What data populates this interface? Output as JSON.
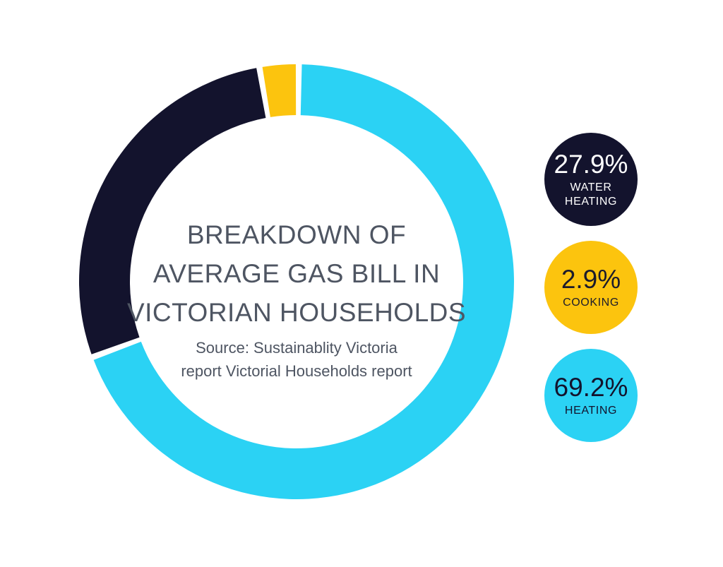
{
  "page": {
    "background": "#FFFFFF"
  },
  "title": {
    "lines": [
      "BREAKDOWN OF",
      "AVERAGE GAS BILL IN",
      "VICTORIAN HOUSEHOLDS"
    ],
    "full_text": "BREAKDOWN OF AVERAGE GAS BILL IN VICTORIAN HOUSEHOLDS",
    "color": "#4E5562"
  },
  "source": {
    "lines": [
      "Source: Sustainablity Victoria",
      "report Victorial Households report"
    ],
    "full_text": "Source: Sustainablity Victoria report Victorial Households report",
    "color": "#4E5562"
  },
  "chart_data": {
    "type": "pie",
    "variant": "donut",
    "title": "BREAKDOWN OF AVERAGE GAS BILL IN VICTORIAN HOUSEHOLDS",
    "unit": "%",
    "segments": [
      {
        "label": "WATER HEATING",
        "label_display": "WATER\nHEATING",
        "value_pct": 27.9,
        "display": "27.9%",
        "color": "#13132D",
        "text_color": "#FFFFFF"
      },
      {
        "label": "COOKING",
        "label_display": "COOKING",
        "value_pct": 2.9,
        "display": "2.9%",
        "color": "#FCC40E",
        "text_color": "#1B1B2C"
      },
      {
        "label": "HEATING",
        "label_display": "HEATING",
        "value_pct": 69.2,
        "display": "69.2%",
        "color": "#2BD2F4",
        "text_color": "#13132D"
      }
    ],
    "draw_order": [
      "HEATING",
      "WATER HEATING",
      "COOKING"
    ],
    "start_angle_deg": 0.6,
    "gap_deg": 1.6,
    "legend_position": "right",
    "center_text": true
  }
}
